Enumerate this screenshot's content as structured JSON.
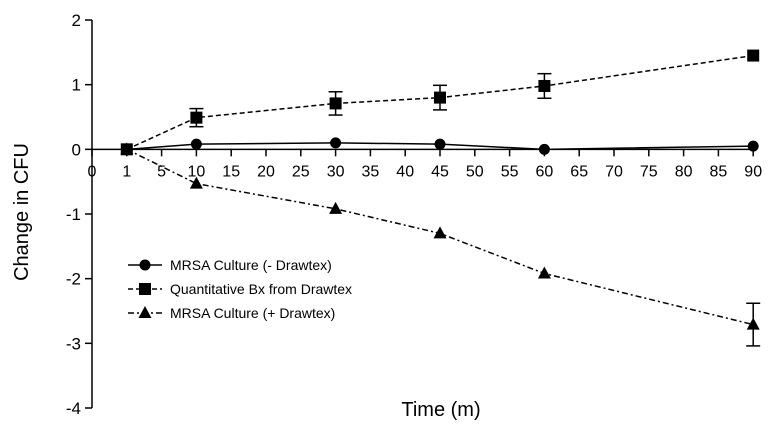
{
  "chart_data": {
    "type": "line",
    "title": "",
    "xlabel": "Time (m)",
    "ylabel": "Change in CFU",
    "x_ticks": [
      "0",
      "1",
      "5",
      "10",
      "15",
      "20",
      "25",
      "30",
      "35",
      "40",
      "45",
      "50",
      "55",
      "60",
      "65",
      "70",
      "75",
      "80",
      "85",
      "90"
    ],
    "y_ticks": [
      "2",
      "1",
      "0",
      "-1",
      "-2",
      "-3",
      "-4"
    ],
    "ylim": [
      -4,
      2
    ],
    "grid": false,
    "legend_position": "bottom-left",
    "series": [
      {
        "name": "MRSA Culture (- Drawtex)",
        "marker": "circle",
        "line": "solid",
        "x": [
          "1",
          "10",
          "30",
          "45",
          "60",
          "90"
        ],
        "y": [
          0.0,
          0.08,
          0.1,
          0.08,
          0.0,
          0.05
        ],
        "err": [
          0,
          0,
          0,
          0,
          0,
          0
        ]
      },
      {
        "name": "Quantitative Bx from Drawtex",
        "marker": "square",
        "line": "dashed",
        "x": [
          "1",
          "10",
          "30",
          "45",
          "60",
          "90"
        ],
        "y": [
          0.0,
          0.49,
          0.71,
          0.8,
          0.98,
          1.45
        ],
        "err": [
          0,
          0.14,
          0.18,
          0.19,
          0.19,
          0
        ]
      },
      {
        "name": "MRSA Culture (+ Drawtex)",
        "marker": "triangle",
        "line": "dashdot",
        "x": [
          "1",
          "10",
          "30",
          "45",
          "60",
          "90"
        ],
        "y": [
          0.0,
          -0.53,
          -0.92,
          -1.3,
          -1.92,
          -2.71
        ],
        "err": [
          0,
          0,
          0,
          0,
          0,
          0.33
        ]
      }
    ]
  }
}
